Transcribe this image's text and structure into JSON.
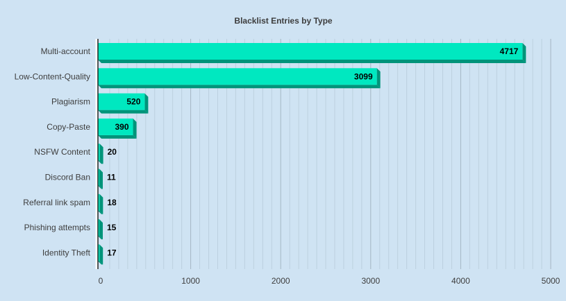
{
  "chart_data": {
    "type": "bar",
    "orientation": "horizontal",
    "title": "Blacklist Entries by Type",
    "categories": [
      "Multi-account",
      "Low-Content-Quality",
      "Plagiarism",
      "Copy-Paste",
      "NSFW Content",
      "Discord Ban",
      "Referral link spam",
      "Phishing attempts",
      "Identity Theft"
    ],
    "values": [
      4717,
      3099,
      520,
      390,
      20,
      11,
      18,
      15,
      17
    ],
    "value_labels": [
      "4717",
      "3099",
      "520",
      "390",
      "20",
      "11",
      "18",
      "15",
      "17"
    ],
    "xlim": [
      0,
      5000
    ],
    "ticks": [
      0,
      1000,
      2000,
      3000,
      4000,
      5000
    ],
    "tick_labels": [
      "0",
      "1000",
      "2000",
      "3000",
      "4000",
      "5000"
    ],
    "grid": true,
    "legend": "none",
    "colors": {
      "background": "#cfe3f3",
      "bar_face": "#00e8c0",
      "bar_side": "#00947a",
      "grid_major": "#a4b6c3",
      "grid_minor": "#bcd0df",
      "axis": "#222222"
    }
  }
}
